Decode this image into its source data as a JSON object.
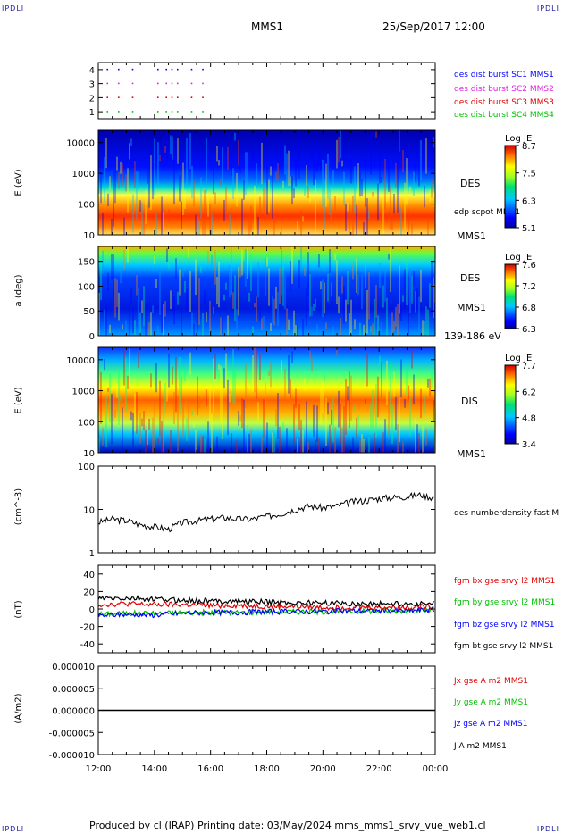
{
  "header": {
    "corner_tl": "IPDLI",
    "corner_tr": "IPDLI",
    "corner_bl": "IPDLI",
    "corner_br": "IPDLI",
    "spacecraft": "MMS1",
    "datetime": "25/Sep/2017 12:00"
  },
  "footer": {
    "text": "Produced by cl (IRAP)   Printing date: 03/May/2024   mms_mms1_srvy_vue_web1.cl"
  },
  "colors": {
    "blue": "#0000ff",
    "magenta": "#e020e0",
    "red": "#e00000",
    "green": "#00c000",
    "black": "#000000"
  },
  "chart_data": [
    {
      "type": "scatter",
      "id": "burst",
      "ylim": [
        0.5,
        4.5
      ],
      "y_ticks": [
        "1",
        "2",
        "3",
        "4"
      ],
      "x_ticks": [
        "12:00",
        "14:00",
        "16:00",
        "18:00",
        "20:00",
        "22:00",
        "00:00"
      ],
      "series": [
        {
          "name": "des dist burst SC1 MMS1",
          "color": "#0000ff",
          "y": 4,
          "x_hours": [
            12.3,
            12.7,
            13.2,
            14.1,
            14.4,
            14.6,
            14.8,
            15.3,
            15.7
          ]
        },
        {
          "name": "des dist burst SC2 MMS2",
          "color": "#e020e0",
          "y": 3,
          "x_hours": [
            12.3,
            12.7,
            13.2,
            14.1,
            14.4,
            14.6,
            14.8,
            15.3,
            15.7
          ]
        },
        {
          "name": "des dist burst SC3 MMS3",
          "color": "#e00000",
          "y": 2,
          "x_hours": [
            12.3,
            12.7,
            13.2,
            14.1,
            14.4,
            14.6,
            14.8,
            15.3,
            15.7
          ]
        },
        {
          "name": "des dist burst SC4 MMS4",
          "color": "#00c000",
          "y": 1,
          "x_hours": [
            12.3,
            12.7,
            13.2,
            14.1,
            14.4,
            14.6,
            14.8,
            15.3,
            15.7
          ]
        }
      ]
    },
    {
      "type": "heatmap",
      "id": "des_energy",
      "ylabel": "E (eV)",
      "y_ticks": [
        "10",
        "100",
        "1000",
        "10000"
      ],
      "side_label": "DES",
      "extra_label": "edp scpot MMS1",
      "bottom_label": "MMS1",
      "colorbar": {
        "title": "Log JE",
        "ticks": [
          "8.7",
          "7.5",
          "6.3",
          "5.1"
        ]
      }
    },
    {
      "type": "heatmap",
      "id": "des_pitch",
      "ylabel": "a (deg)",
      "y_ticks": [
        "0",
        "50",
        "100",
        "150"
      ],
      "side_label": "DES",
      "mid_label": "MMS1",
      "bottom_label": "139-186 eV",
      "colorbar": {
        "title": "Log JE",
        "ticks": [
          "7.6",
          "7.2",
          "6.8",
          "6.3"
        ]
      }
    },
    {
      "type": "heatmap",
      "id": "dis_energy",
      "ylabel": "E (eV)",
      "y_ticks": [
        "10",
        "100",
        "1000",
        "10000"
      ],
      "side_label": "DIS",
      "bottom_label": "MMS1",
      "colorbar": {
        "title": "Log JE",
        "ticks": [
          "7.7",
          "6.2",
          "4.8",
          "3.4"
        ]
      }
    },
    {
      "type": "line",
      "id": "density",
      "ylabel": "(cm^-3)",
      "y_ticks": [
        "1",
        "10",
        "100"
      ],
      "ylim": [
        1,
        100
      ],
      "x_hours": [
        12.0,
        12.5,
        13.0,
        13.5,
        14.0,
        14.5,
        15.0,
        15.5,
        16.0,
        16.5,
        17.0,
        17.5,
        18.0,
        18.5,
        19.0,
        19.5,
        20.0,
        20.5,
        21.0,
        21.5,
        22.0,
        22.5,
        23.0,
        23.5,
        24.0
      ],
      "values": [
        5,
        6,
        5.5,
        4.5,
        4,
        3.5,
        5,
        5.5,
        6,
        6.5,
        6,
        6,
        7,
        8,
        10,
        12,
        11,
        12,
        15,
        16,
        18,
        19,
        20,
        22,
        18
      ],
      "series": [
        {
          "name": "des numberdensity fast M",
          "color": "#000000"
        }
      ]
    },
    {
      "type": "line",
      "id": "bfield",
      "ylabel": "(nT)",
      "y_ticks": [
        "-40",
        "-20",
        "0",
        "20",
        "40"
      ],
      "ylim": [
        -50,
        50
      ],
      "x_hours": [
        12,
        13,
        14,
        15,
        16,
        17,
        18,
        19,
        20,
        21,
        22,
        23,
        24
      ],
      "series": [
        {
          "name": "fgm bx gse srvy l2 MMS1",
          "color": "#e00000",
          "values": [
            5,
            6,
            5,
            5,
            4,
            4,
            3,
            3,
            2,
            2,
            2,
            2,
            3
          ]
        },
        {
          "name": "fgm by gse srvy l2 MMS1",
          "color": "#00c000",
          "values": [
            -6,
            -5,
            -5,
            -4,
            -4,
            -4,
            -3,
            -3,
            -3,
            -3,
            -2,
            -2,
            -1
          ]
        },
        {
          "name": "fgm bz gse srvy l2 MMS1",
          "color": "#0000ff",
          "values": [
            -8,
            -6,
            -7,
            -5,
            -4,
            -4,
            -3,
            -3,
            -3,
            -2,
            -2,
            -2,
            -1
          ]
        },
        {
          "name": "fgm bt gse srvy l2 MMS1",
          "color": "#000000",
          "values": [
            12,
            12,
            11,
            10,
            9,
            9,
            8,
            7,
            7,
            6,
            6,
            6,
            6
          ]
        }
      ]
    },
    {
      "type": "line",
      "id": "current",
      "ylabel": "(A/m2)",
      "y_ticks": [
        "-0.000010",
        "-0.000005",
        "0.000000",
        "0.000005",
        "0.000010"
      ],
      "ylim": [
        -1e-05,
        1e-05
      ],
      "x_ticks": [
        "12:00",
        "14:00",
        "16:00",
        "18:00",
        "20:00",
        "22:00",
        "00:00"
      ],
      "series": [
        {
          "name": "Jx gse A m2 MMS1",
          "color": "#e00000"
        },
        {
          "name": "Jy gse A m2 MMS1",
          "color": "#00c000"
        },
        {
          "name": "Jz gse A m2 MMS1",
          "color": "#0000ff"
        },
        {
          "name": "J A m2 MMS1",
          "color": "#000000"
        }
      ]
    }
  ]
}
